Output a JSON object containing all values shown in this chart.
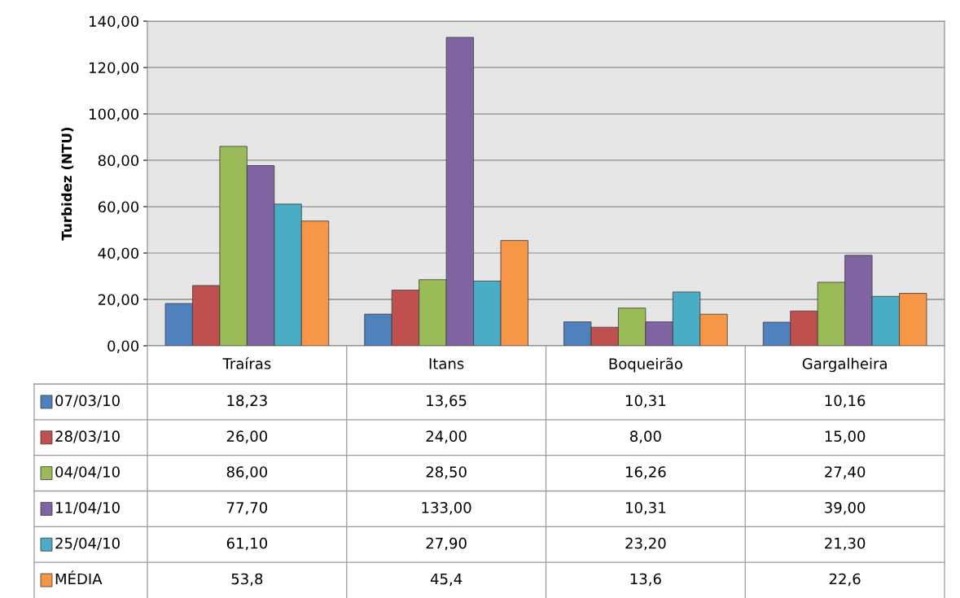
{
  "chart_data": {
    "type": "bar",
    "ylabel": "Turbidez (NTU)",
    "categories": [
      "Traíras",
      "Itans",
      "Boqueirão",
      "Gargalheira"
    ],
    "series": [
      {
        "name": "07/03/10",
        "color": "#4f81bd",
        "values": [
          18.23,
          13.65,
          10.31,
          10.16
        ],
        "value_labels": [
          "18,23",
          "13,65",
          "10,31",
          "10,16"
        ]
      },
      {
        "name": "28/03/10",
        "color": "#c0504d",
        "values": [
          26.0,
          24.0,
          8.0,
          15.0
        ],
        "value_labels": [
          "26,00",
          "24,00",
          "8,00",
          "15,00"
        ]
      },
      {
        "name": "04/04/10",
        "color": "#9bbb59",
        "values": [
          86.0,
          28.5,
          16.26,
          27.4
        ],
        "value_labels": [
          "86,00",
          "28,50",
          "16,26",
          "27,40"
        ]
      },
      {
        "name": "11/04/10",
        "color": "#8064a2",
        "values": [
          77.7,
          133.0,
          10.31,
          39.0
        ],
        "value_labels": [
          "77,70",
          "133,00",
          "10,31",
          "39,00"
        ]
      },
      {
        "name": "25/04/10",
        "color": "#4bacc6",
        "values": [
          61.1,
          27.9,
          23.2,
          21.3
        ],
        "value_labels": [
          "61,10",
          "27,90",
          "23,20",
          "21,30"
        ]
      },
      {
        "name": "MÉDIA",
        "color": "#f79646",
        "values": [
          53.8,
          45.4,
          13.6,
          22.6
        ],
        "value_labels": [
          "53,8",
          "45,4",
          "13,6",
          "22,6"
        ]
      }
    ],
    "ylim": [
      0,
      140
    ],
    "yticks": [
      {
        "value": 0,
        "label": "0,00"
      },
      {
        "value": 20,
        "label": "20,00"
      },
      {
        "value": 40,
        "label": "40,00"
      },
      {
        "value": 60,
        "label": "60,00"
      },
      {
        "value": 80,
        "label": "80,00"
      },
      {
        "value": 100,
        "label": "100,00"
      },
      {
        "value": 120,
        "label": "120,00"
      },
      {
        "value": 140,
        "label": "140,00"
      }
    ],
    "grid": "y",
    "legend": "bottom"
  }
}
